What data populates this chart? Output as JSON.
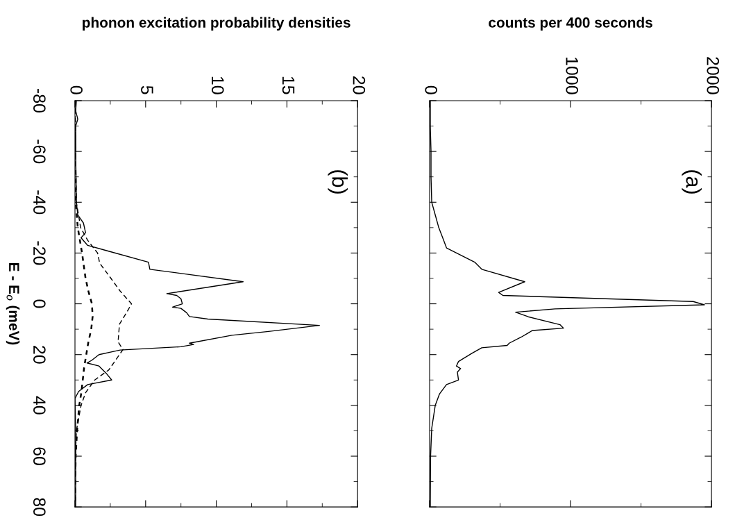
{
  "chart_data": [
    {
      "type": "line",
      "xlabel": "counts per 400 seconds",
      "annotations": [
        "(a)"
      ],
      "xlim": [
        0,
        2000
      ],
      "xticks": [
        0,
        1000,
        2000
      ],
      "ylim": [
        80,
        -80
      ],
      "yticks": [
        -80,
        -60,
        -40,
        -20,
        0,
        20,
        40,
        60,
        80
      ],
      "tick_labels": "x",
      "grid": false,
      "legend": false,
      "series": [
        {
          "color": "#000000",
          "line_style": "solid",
          "values": [
            -80,
            -70,
            -60,
            -50,
            -40,
            -35,
            -30,
            -25,
            -22,
            -16.4,
            -13.6,
            -8.7,
            -4.5,
            -3.3,
            -0.9,
            0.4,
            2,
            3.3,
            5.1,
            8.2,
            9.6,
            10.5,
            13.1,
            15.5,
            16.4,
            17.3,
            19.5,
            22.7,
            24.5,
            25.5,
            26.9,
            30,
            31.8,
            35.5,
            40,
            43.6,
            49,
            60,
            78,
            80
          ],
          "x": [
            5,
            5,
            10,
            10,
            15,
            40,
            65,
            100,
            120,
            320,
            370,
            675,
            490,
            520,
            1870,
            1950,
            890,
            610,
            700,
            925,
            950,
            730,
            650,
            565,
            550,
            370,
            300,
            205,
            190,
            220,
            197,
            205,
            120,
            70,
            40,
            30,
            15,
            7,
            5,
            5
          ]
        }
      ]
    },
    {
      "type": "line",
      "xlabel": "phonon excitation probability densities",
      "ylabel": "E - E$_{o}$ (meV)",
      "annotations": [
        "(b)"
      ],
      "xlim": [
        0,
        20
      ],
      "xticks": [
        0,
        5,
        10,
        15,
        20
      ],
      "ylim": [
        80,
        -80
      ],
      "yticks": [
        -80,
        -60,
        -40,
        -20,
        0,
        20,
        40,
        60,
        80
      ],
      "grid": false,
      "legend": false,
      "series": [
        {
          "color": "#000000",
          "line_style": "solid",
          "values": [
            -80,
            -76,
            -72.7,
            -70,
            -60,
            -40,
            -35,
            -31.8,
            -28,
            -26,
            -23,
            -21,
            -16.4,
            -13.6,
            -8.7,
            -4,
            -3.3,
            -2,
            0,
            1.3,
            1.8,
            3.5,
            5,
            6,
            8.5,
            10.9,
            12.4,
            15.5,
            16,
            16.9,
            18.2,
            20,
            22.2,
            23.3,
            24.5,
            27.3,
            30,
            31.8,
            34.5,
            37.3,
            50,
            80
          ],
          "x": [
            0.1,
            0.05,
            0.2,
            0.05,
            0.05,
            0.1,
            0.2,
            0.6,
            0.75,
            0.43,
            0.9,
            2.2,
            5.2,
            5.3,
            11.9,
            6.5,
            7.2,
            7.5,
            7.6,
            6.9,
            7.5,
            7.9,
            8.1,
            9.4,
            17.3,
            13.7,
            11.1,
            8.1,
            8.4,
            7.5,
            3.2,
            1.7,
            1.2,
            0.85,
            1.7,
            2.2,
            2.6,
            0.9,
            0.26,
            0,
            0.05,
            0.05
          ]
        },
        {
          "color": "#000000",
          "line_style": "dashed",
          "values": [
            -80,
            -40,
            -30,
            -25,
            -20,
            -16,
            -10,
            -5,
            0,
            3,
            8,
            15,
            18,
            22,
            26,
            30,
            35,
            40,
            50,
            60,
            80
          ],
          "x": [
            0,
            0.1,
            0.4,
            0.9,
            1.6,
            1.75,
            2.55,
            3.2,
            4.0,
            3.7,
            3.15,
            3.05,
            3.4,
            2.9,
            2.4,
            1.4,
            0.75,
            0.43,
            0.1,
            0.03,
            0
          ]
        },
        {
          "color": "#000000",
          "line_style": "dotted",
          "values": [
            -80,
            -40,
            -30,
            -20,
            -16,
            -10,
            -5,
            0,
            5,
            10,
            15,
            20,
            25,
            30,
            35,
            40,
            50,
            60,
            80
          ],
          "x": [
            0,
            0.05,
            0.2,
            0.5,
            0.6,
            0.75,
            0.95,
            1.2,
            1.25,
            1.15,
            0.95,
            0.8,
            0.65,
            0.55,
            0.45,
            0.3,
            0.15,
            0.05,
            0
          ]
        }
      ]
    }
  ]
}
